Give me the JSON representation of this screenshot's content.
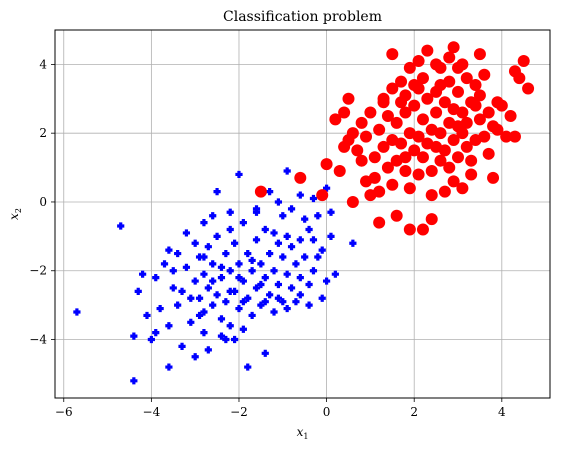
{
  "chart_data": {
    "type": "scatter",
    "title": "Classification problem",
    "xlabel": "x",
    "xlabel_sub": "1",
    "ylabel": "x",
    "ylabel_sub": "2",
    "xlim": [
      -6.2,
      5.1
    ],
    "ylim": [
      -5.7,
      5.0
    ],
    "xticks": [
      -6,
      -4,
      -2,
      0,
      2,
      4
    ],
    "yticks": [
      -4,
      -2,
      0,
      2,
      4
    ],
    "xtick_labels": [
      "−6",
      "−4",
      "−2",
      "0",
      "2",
      "4"
    ],
    "ytick_labels": [
      "−4",
      "−2",
      "0",
      "2",
      "4"
    ],
    "grid": true,
    "series": [
      {
        "color": "#0000ff",
        "marker": "plus-filled",
        "points": [
          [
            -5.7,
            -3.2
          ],
          [
            -4.7,
            -0.7
          ],
          [
            -4.4,
            -3.9
          ],
          [
            -4.4,
            -5.2
          ],
          [
            -4.2,
            -2.1
          ],
          [
            -4.0,
            -4.0
          ],
          [
            -3.6,
            -4.8
          ],
          [
            -3.5,
            -2.5
          ],
          [
            -3.4,
            -1.5
          ],
          [
            -3.2,
            -0.9
          ],
          [
            -3.0,
            -4.5
          ],
          [
            -2.8,
            -3.2
          ],
          [
            -2.6,
            -0.4
          ],
          [
            -2.5,
            0.3
          ],
          [
            -2.3,
            -4.0
          ],
          [
            -2.2,
            -0.3
          ],
          [
            -2.0,
            0.8
          ],
          [
            -1.8,
            -4.8
          ],
          [
            -1.6,
            -0.2
          ],
          [
            -1.4,
            -4.4
          ],
          [
            -1.2,
            -0.9
          ],
          [
            -1.0,
            -2.9
          ],
          [
            -0.9,
            0.9
          ],
          [
            -0.8,
            -1.3
          ],
          [
            -0.6,
            0.7
          ],
          [
            -0.4,
            -0.8
          ],
          [
            -0.3,
            0.1
          ],
          [
            -0.2,
            -1.6
          ],
          [
            -0.1,
            -2.8
          ],
          [
            0.0,
            0.4
          ],
          [
            0.1,
            -0.3
          ],
          [
            0.2,
            -2.1
          ],
          [
            0.6,
            -1.2
          ],
          [
            -4.3,
            -2.6
          ],
          [
            -4.1,
            -3.3
          ],
          [
            -3.9,
            -2.2
          ],
          [
            -3.8,
            -3.1
          ],
          [
            -3.7,
            -1.8
          ],
          [
            -3.6,
            -3.6
          ],
          [
            -3.5,
            -2.0
          ],
          [
            -3.4,
            -3.0
          ],
          [
            -3.3,
            -2.6
          ],
          [
            -3.2,
            -1.9
          ],
          [
            -3.1,
            -3.5
          ],
          [
            -3.0,
            -2.3
          ],
          [
            -3.0,
            -1.2
          ],
          [
            -2.9,
            -2.8
          ],
          [
            -2.9,
            -1.6
          ],
          [
            -2.8,
            -2.1
          ],
          [
            -2.8,
            -3.8
          ],
          [
            -2.7,
            -1.3
          ],
          [
            -2.7,
            -2.5
          ],
          [
            -2.6,
            -3.0
          ],
          [
            -2.6,
            -1.8
          ],
          [
            -2.5,
            -2.7
          ],
          [
            -2.5,
            -1.0
          ],
          [
            -2.4,
            -2.2
          ],
          [
            -2.4,
            -3.4
          ],
          [
            -2.3,
            -1.5
          ],
          [
            -2.3,
            -2.9
          ],
          [
            -2.2,
            -2.0
          ],
          [
            -2.2,
            -3.6
          ],
          [
            -2.1,
            -1.2
          ],
          [
            -2.1,
            -2.6
          ],
          [
            -2.0,
            -1.8
          ],
          [
            -2.0,
            -3.1
          ],
          [
            -1.9,
            -2.3
          ],
          [
            -1.9,
            -0.6
          ],
          [
            -1.8,
            -1.5
          ],
          [
            -1.8,
            -2.8
          ],
          [
            -1.7,
            -2.0
          ],
          [
            -1.7,
            -3.3
          ],
          [
            -1.6,
            -1.1
          ],
          [
            -1.6,
            -2.5
          ],
          [
            -1.5,
            -1.8
          ],
          [
            -1.5,
            -3.0
          ],
          [
            -1.4,
            -0.8
          ],
          [
            -1.4,
            -2.2
          ],
          [
            -1.3,
            -1.5
          ],
          [
            -1.3,
            -2.7
          ],
          [
            -1.2,
            -2.0
          ],
          [
            -1.2,
            -3.2
          ],
          [
            -1.1,
            -1.2
          ],
          [
            -1.1,
            -2.4
          ],
          [
            -1.0,
            -1.6
          ],
          [
            -1.0,
            -0.4
          ],
          [
            -0.9,
            -2.1
          ],
          [
            -0.9,
            -1.0
          ],
          [
            -0.8,
            -2.5
          ],
          [
            -0.8,
            -0.2
          ],
          [
            -0.7,
            -1.8
          ],
          [
            -0.7,
            -2.9
          ],
          [
            -0.6,
            -1.1
          ],
          [
            -0.6,
            -2.2
          ],
          [
            -0.5,
            -0.5
          ],
          [
            -0.5,
            -1.6
          ],
          [
            -0.4,
            -2.4
          ],
          [
            -0.3,
            -1.1
          ],
          [
            -0.3,
            -2.0
          ],
          [
            -0.2,
            -0.4
          ],
          [
            -0.1,
            -1.4
          ],
          [
            0.0,
            -2.3
          ],
          [
            0.1,
            -1.0
          ],
          [
            -3.9,
            -3.8
          ],
          [
            -3.3,
            -4.2
          ],
          [
            -2.7,
            -4.3
          ],
          [
            -2.1,
            -4.0
          ],
          [
            -2.4,
            -3.9
          ],
          [
            -1.9,
            -3.7
          ],
          [
            -2.9,
            -3.3
          ],
          [
            -3.6,
            -1.4
          ],
          [
            -2.8,
            -0.6
          ],
          [
            -2.2,
            -0.8
          ],
          [
            -1.6,
            -0.3
          ],
          [
            -1.1,
            0.0
          ],
          [
            -0.6,
            0.2
          ],
          [
            -1.3,
            0.3
          ],
          [
            -2.6,
            -2.3
          ],
          [
            -2.2,
            -2.6
          ],
          [
            -1.9,
            -2.9
          ],
          [
            -1.5,
            -2.4
          ],
          [
            -2.0,
            -2.2
          ],
          [
            -1.7,
            -1.7
          ],
          [
            -2.4,
            -1.9
          ],
          [
            -3.1,
            -2.8
          ],
          [
            -2.8,
            -1.6
          ],
          [
            -1.4,
            -2.9
          ],
          [
            -1.1,
            -2.8
          ],
          [
            -0.9,
            -3.1
          ],
          [
            -0.6,
            -2.7
          ],
          [
            -0.4,
            -3.0
          ]
        ]
      },
      {
        "color": "#ff0000",
        "marker": "circle",
        "points": [
          [
            -1.5,
            0.3
          ],
          [
            -0.6,
            0.7
          ],
          [
            -0.1,
            0.2
          ],
          [
            0.0,
            1.1
          ],
          [
            0.2,
            2.4
          ],
          [
            0.4,
            1.6
          ],
          [
            0.5,
            3.0
          ],
          [
            0.6,
            0.0
          ],
          [
            0.8,
            2.3
          ],
          [
            1.0,
            0.2
          ],
          [
            1.2,
            -0.6
          ],
          [
            1.3,
            3.0
          ],
          [
            1.5,
            4.3
          ],
          [
            1.6,
            -0.4
          ],
          [
            1.7,
            2.9
          ],
          [
            1.8,
            0.9
          ],
          [
            1.9,
            -0.8
          ],
          [
            2.0,
            3.4
          ],
          [
            2.1,
            4.1
          ],
          [
            2.2,
            -0.8
          ],
          [
            2.3,
            4.4
          ],
          [
            2.4,
            -0.5
          ],
          [
            2.5,
            3.2
          ],
          [
            2.6,
            3.9
          ],
          [
            2.7,
            0.3
          ],
          [
            2.8,
            3.5
          ],
          [
            2.9,
            4.5
          ],
          [
            3.0,
            2.2
          ],
          [
            3.1,
            0.4
          ],
          [
            3.2,
            3.6
          ],
          [
            3.3,
            1.2
          ],
          [
            3.4,
            2.8
          ],
          [
            3.6,
            3.7
          ],
          [
            3.7,
            1.4
          ],
          [
            3.8,
            0.7
          ],
          [
            3.9,
            2.1
          ],
          [
            4.0,
            2.8
          ],
          [
            4.2,
            2.5
          ],
          [
            4.3,
            1.9
          ],
          [
            4.4,
            3.6
          ],
          [
            4.5,
            4.1
          ],
          [
            4.6,
            3.3
          ],
          [
            0.3,
            0.9
          ],
          [
            0.7,
            1.5
          ],
          [
            0.9,
            1.9
          ],
          [
            1.1,
            1.3
          ],
          [
            1.2,
            2.1
          ],
          [
            1.3,
            1.6
          ],
          [
            1.4,
            2.5
          ],
          [
            1.4,
            1.0
          ],
          [
            1.5,
            1.8
          ],
          [
            1.6,
            2.3
          ],
          [
            1.6,
            1.2
          ],
          [
            1.7,
            1.7
          ],
          [
            1.8,
            2.6
          ],
          [
            1.8,
            1.3
          ],
          [
            1.9,
            2.0
          ],
          [
            2.0,
            1.5
          ],
          [
            2.0,
            2.8
          ],
          [
            2.1,
            1.9
          ],
          [
            2.1,
            0.8
          ],
          [
            2.2,
            2.4
          ],
          [
            2.2,
            1.3
          ],
          [
            2.3,
            1.7
          ],
          [
            2.3,
            3.0
          ],
          [
            2.4,
            2.1
          ],
          [
            2.4,
            0.9
          ],
          [
            2.5,
            1.6
          ],
          [
            2.5,
            2.6
          ],
          [
            2.6,
            1.2
          ],
          [
            2.6,
            2.0
          ],
          [
            2.7,
            2.9
          ],
          [
            2.7,
            1.5
          ],
          [
            2.8,
            2.3
          ],
          [
            2.8,
            1.0
          ],
          [
            2.9,
            1.8
          ],
          [
            2.9,
            2.7
          ],
          [
            3.0,
            1.3
          ],
          [
            3.0,
            3.2
          ],
          [
            3.1,
            2.0
          ],
          [
            3.1,
            2.6
          ],
          [
            3.2,
            1.6
          ],
          [
            3.2,
            2.3
          ],
          [
            3.3,
            2.9
          ],
          [
            3.4,
            1.8
          ],
          [
            3.5,
            2.4
          ],
          [
            3.5,
            3.1
          ],
          [
            3.6,
            1.9
          ],
          [
            3.7,
            2.6
          ],
          [
            3.8,
            2.2
          ],
          [
            0.5,
            1.8
          ],
          [
            0.8,
            1.2
          ],
          [
            1.0,
            2.6
          ],
          [
            1.1,
            0.7
          ],
          [
            1.3,
            2.9
          ],
          [
            1.5,
            0.5
          ],
          [
            1.7,
            3.5
          ],
          [
            1.9,
            3.9
          ],
          [
            2.2,
            3.6
          ],
          [
            2.6,
            3.4
          ],
          [
            3.0,
            3.9
          ],
          [
            3.4,
            3.4
          ],
          [
            3.9,
            2.9
          ],
          [
            4.1,
            1.9
          ],
          [
            0.4,
            2.6
          ],
          [
            0.6,
            2.0
          ],
          [
            0.9,
            0.6
          ],
          [
            1.2,
            0.3
          ],
          [
            1.9,
            0.4
          ],
          [
            2.4,
            0.2
          ],
          [
            2.9,
            0.6
          ],
          [
            3.3,
            0.8
          ],
          [
            1.5,
            3.3
          ],
          [
            1.8,
            3.1
          ],
          [
            2.1,
            3.3
          ],
          [
            2.5,
            4.0
          ],
          [
            2.8,
            4.2
          ],
          [
            3.1,
            4.0
          ],
          [
            3.5,
            4.3
          ],
          [
            4.3,
            3.8
          ]
        ]
      }
    ]
  }
}
